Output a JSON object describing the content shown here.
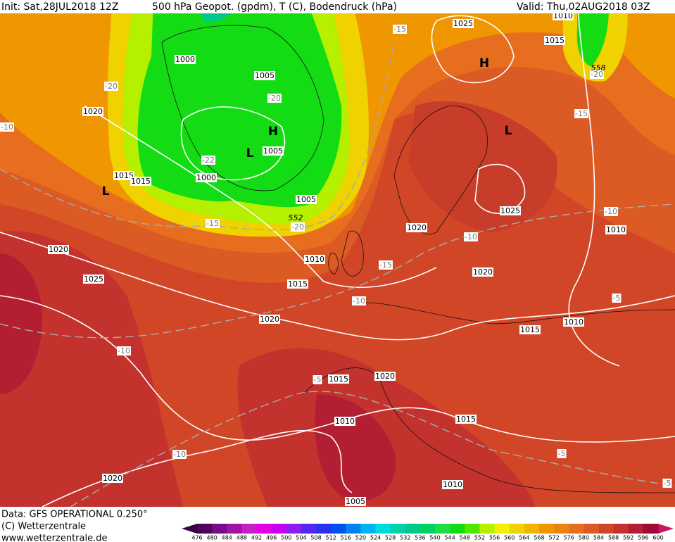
{
  "header": {
    "init": "Init: Sat,28JUL2018 12Z",
    "title": "500 hPa Geopot. (gpdm), T (C), Bodendruck (hPa)",
    "valid": "Valid: Thu,02AUG2018 03Z"
  },
  "footer": {
    "data": "Data: GFS OPERATIONAL 0.250°",
    "copyright": "(C) Wetterzentrale",
    "url": "www.wetterzentrale.de"
  },
  "map": {
    "isobar_labels": [
      "1000",
      "1005",
      "1020",
      "1005",
      "1015",
      "1015",
      "1000",
      "1005",
      "1020",
      "1025",
      "1010",
      "1015",
      "1020",
      "1025",
      "1015",
      "1010",
      "1025",
      "1020",
      "1010",
      "1020",
      "1015",
      "1010",
      "1020",
      "1015",
      "1010",
      "1015",
      "1010",
      "1005",
      "1020"
    ],
    "temperature_labels": [
      "-20",
      "-20",
      "-22",
      "-15",
      "-20",
      "-15",
      "-20",
      "-15",
      "-10",
      "-10",
      "-10",
      "-15",
      "-10",
      "-10",
      "-5",
      "-10",
      "-5",
      "-5",
      "-5"
    ],
    "contour_labels": [
      "552",
      "558"
    ],
    "centers": [
      "H",
      "L",
      "L",
      "H",
      "L"
    ]
  },
  "colorbar": {
    "labels": [
      476,
      480,
      484,
      488,
      492,
      496,
      500,
      504,
      508,
      512,
      516,
      520,
      524,
      528,
      532,
      536,
      540,
      544,
      548,
      552,
      556,
      560,
      564,
      568,
      572,
      576,
      580,
      584,
      588,
      592,
      596,
      600
    ],
    "colors": [
      "#50005a",
      "#780a8c",
      "#a014a0",
      "#c81ec8",
      "#e600e6",
      "#c800f0",
      "#8c1ef0",
      "#5028f0",
      "#2832f0",
      "#0050f0",
      "#0082f0",
      "#00b4f0",
      "#00dcdc",
      "#00d2aa",
      "#00c88c",
      "#00d264",
      "#1edc46",
      "#14dc14",
      "#50e600",
      "#b4f000",
      "#f0f000",
      "#f0d200",
      "#f0b400",
      "#f09600",
      "#eb8214",
      "#e66e1e",
      "#dc5a23",
      "#d24628",
      "#c3322d",
      "#b41e32",
      "#a00a37"
    ],
    "low_color": "#3c004b",
    "high_color": "#c81464"
  }
}
